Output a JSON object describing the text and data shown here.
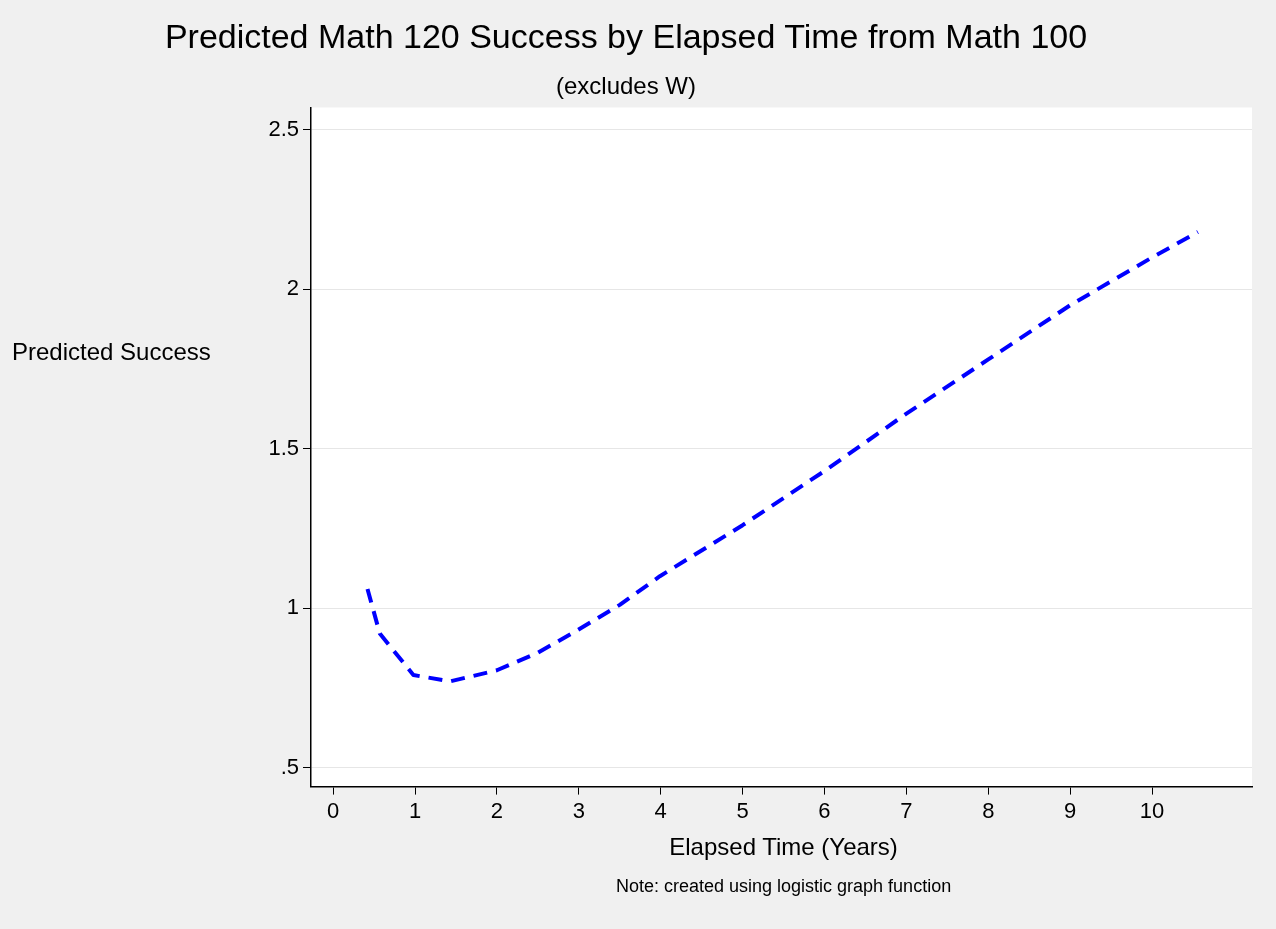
{
  "chart_data": {
    "type": "line",
    "title": "Predicted Math 120 Success by Elapsed Time from Math 100",
    "subtitle": "(excludes W)",
    "xlabel": "Elapsed Time (Years)",
    "ylabel": "Predicted Success",
    "annotations": [
      "Note: created using logistic graph function"
    ],
    "series": [
      {
        "color": "#0000ff",
        "x": [
          0.42,
          0.57,
          0.98,
          1.43,
          2.0,
          2.5,
          2.98,
          3.5,
          3.99,
          5,
          6,
          7,
          8,
          9,
          10,
          10.56
        ],
        "values": [
          1.06,
          0.92,
          0.79,
          0.77,
          0.805,
          0.86,
          0.93,
          1.01,
          1.1,
          1.26,
          1.43,
          1.61,
          1.78,
          1.95,
          2.1,
          2.18
        ]
      }
    ],
    "xlim": [
      -0.27,
      11.22
    ],
    "xticks": [
      0,
      1,
      2,
      3,
      4,
      5,
      6,
      7,
      8,
      9,
      10
    ],
    "ylim": [
      0.44,
      2.57
    ],
    "yticks": [
      {
        "value": 0.5,
        "label": ".5"
      },
      1,
      1.5,
      2,
      2.5
    ],
    "grid": "y",
    "legend": false,
    "marker": "none",
    "line_style": "dashed"
  }
}
